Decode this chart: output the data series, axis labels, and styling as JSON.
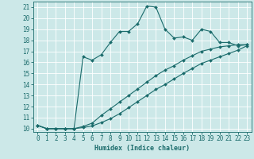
{
  "title": "",
  "xlabel": "Humidex (Indice chaleur)",
  "ylabel": "",
  "bg_color": "#cce8e8",
  "line_color": "#1a6b6b",
  "grid_color": "#ffffff",
  "xlim": [
    -0.5,
    23.5
  ],
  "ylim": [
    9.7,
    21.5
  ],
  "xticks": [
    0,
    1,
    2,
    3,
    4,
    5,
    6,
    7,
    8,
    9,
    10,
    11,
    12,
    13,
    14,
    15,
    16,
    17,
    18,
    19,
    20,
    21,
    22,
    23
  ],
  "yticks": [
    10,
    11,
    12,
    13,
    14,
    15,
    16,
    17,
    18,
    19,
    20,
    21
  ],
  "series1_x": [
    0,
    1,
    2,
    3,
    4,
    5,
    6,
    7,
    8,
    9,
    10,
    11,
    12,
    13,
    14,
    15,
    16,
    17,
    18,
    19,
    20,
    21,
    22,
    23
  ],
  "series1_y": [
    10.3,
    10.0,
    10.0,
    10.0,
    10.0,
    16.5,
    16.2,
    16.7,
    17.8,
    18.8,
    18.8,
    19.5,
    21.1,
    21.0,
    19.0,
    18.2,
    18.3,
    18.0,
    19.0,
    18.8,
    17.8,
    17.8,
    17.5,
    17.6
  ],
  "series2_x": [
    0,
    1,
    2,
    3,
    4,
    5,
    6,
    7,
    8,
    9,
    10,
    11,
    12,
    13,
    14,
    15,
    16,
    17,
    18,
    19,
    20,
    21,
    22,
    23
  ],
  "series2_y": [
    10.3,
    10.0,
    10.0,
    10.0,
    10.0,
    10.2,
    10.5,
    11.2,
    11.8,
    12.4,
    13.0,
    13.6,
    14.2,
    14.8,
    15.3,
    15.7,
    16.2,
    16.6,
    17.0,
    17.2,
    17.4,
    17.5,
    17.6,
    17.6
  ],
  "series3_x": [
    0,
    1,
    2,
    3,
    4,
    5,
    6,
    7,
    8,
    9,
    10,
    11,
    12,
    13,
    14,
    15,
    16,
    17,
    18,
    19,
    20,
    21,
    22,
    23
  ],
  "series3_y": [
    10.3,
    10.0,
    10.0,
    10.0,
    10.0,
    10.1,
    10.25,
    10.55,
    10.9,
    11.35,
    11.9,
    12.45,
    13.0,
    13.55,
    14.0,
    14.5,
    15.0,
    15.45,
    15.9,
    16.2,
    16.5,
    16.8,
    17.1,
    17.5
  ],
  "font_size_label": 6,
  "font_size_tick": 5.5,
  "marker": "D",
  "marker_size": 2.0,
  "line_width": 0.8
}
